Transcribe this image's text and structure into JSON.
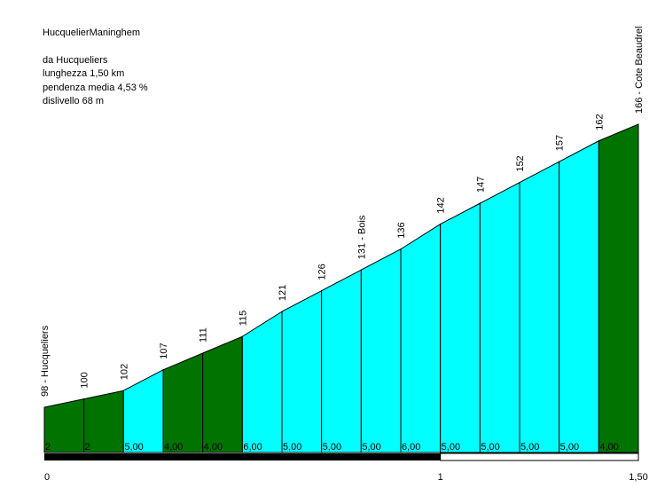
{
  "header": {
    "title": "HucquelierManinghem",
    "from_label": "da Hucqueliers",
    "length_label": "lunghezza 1,50 km",
    "gradient_label": "pendenza media 4,53 %",
    "climb_label": "dislivello 68 m"
  },
  "chart_data": {
    "type": "area",
    "title": "HucquelierManinghem",
    "xlabel": "",
    "ylabel": "",
    "x_unit": "km",
    "y_unit": "m",
    "x": [
      0,
      0.1,
      0.2,
      0.3,
      0.4,
      0.5,
      0.6,
      0.7,
      0.8,
      0.9,
      1.0,
      1.1,
      1.2,
      1.3,
      1.4,
      1.5
    ],
    "elevation": [
      98,
      100,
      102,
      107,
      111,
      115,
      121,
      126,
      131,
      136,
      142,
      147,
      152,
      157,
      162,
      166
    ],
    "elevation_labels": [
      "98 - Hucqueliers",
      "100",
      "102",
      "107",
      "111",
      "115",
      "121",
      "126",
      "131 - Bois",
      "136",
      "142",
      "147",
      "152",
      "157",
      "162",
      "166 - Cote Beaudrel"
    ],
    "gradients": [
      2,
      2,
      5,
      4,
      4,
      6,
      5,
      5,
      5,
      6,
      5,
      5,
      5,
      5,
      4
    ],
    "gradient_labels": [
      "2",
      "2",
      "5,00",
      "4,00",
      "4,00",
      "6,00",
      "5,00",
      "5,00",
      "5,00",
      "6,00",
      "5,00",
      "5,00",
      "5,00",
      "5,00",
      "4,00"
    ],
    "segment_colors": [
      "#007300",
      "#007300",
      "#00ffff",
      "#007300",
      "#007300",
      "#00ffff",
      "#00ffff",
      "#00ffff",
      "#00ffff",
      "#00ffff",
      "#00ffff",
      "#00ffff",
      "#00ffff",
      "#00ffff",
      "#007300"
    ],
    "x_ticks": [
      0,
      1,
      1.5
    ],
    "x_tick_labels": [
      "0",
      "1",
      "1,50"
    ],
    "xlim": [
      0,
      1.5
    ],
    "km_bar": {
      "filled_km": [
        0,
        1
      ],
      "color_filled": "#000000",
      "color_empty": "#ffffff"
    }
  }
}
